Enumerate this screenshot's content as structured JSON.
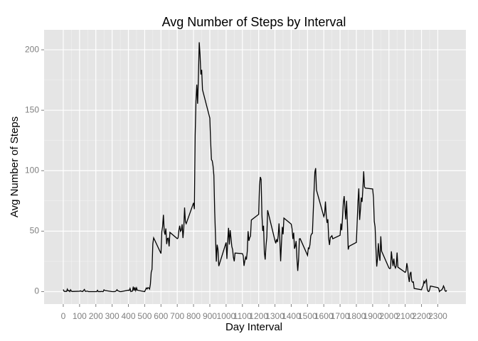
{
  "chart_data": {
    "type": "line",
    "title": "Avg Number of Steps by Interval",
    "x_label": "Day Interval",
    "y_label": "Avg Number of Steps",
    "color": "#000000",
    "grid": true,
    "x": [
      0,
      5,
      10,
      15,
      20,
      25,
      30,
      35,
      40,
      45,
      50,
      55,
      100,
      105,
      110,
      115,
      120,
      125,
      130,
      135,
      140,
      145,
      150,
      155,
      200,
      205,
      210,
      215,
      220,
      225,
      230,
      235,
      240,
      245,
      250,
      255,
      300,
      305,
      310,
      315,
      320,
      325,
      330,
      335,
      340,
      345,
      350,
      355,
      400,
      405,
      410,
      415,
      420,
      425,
      430,
      435,
      440,
      445,
      450,
      455,
      500,
      505,
      510,
      515,
      520,
      525,
      530,
      535,
      540,
      545,
      550,
      555,
      600,
      605,
      610,
      615,
      620,
      625,
      630,
      635,
      640,
      645,
      650,
      655,
      700,
      705,
      710,
      715,
      720,
      725,
      730,
      735,
      740,
      745,
      750,
      755,
      800,
      805,
      810,
      815,
      820,
      825,
      830,
      835,
      840,
      845,
      850,
      855,
      900,
      905,
      910,
      915,
      920,
      925,
      930,
      935,
      940,
      945,
      950,
      955,
      1000,
      1005,
      1010,
      1015,
      1020,
      1025,
      1030,
      1035,
      1040,
      1045,
      1050,
      1055,
      1100,
      1105,
      1110,
      1115,
      1120,
      1125,
      1130,
      1135,
      1140,
      1145,
      1150,
      1155,
      1200,
      1205,
      1210,
      1215,
      1220,
      1225,
      1230,
      1235,
      1240,
      1245,
      1250,
      1255,
      1300,
      1305,
      1310,
      1315,
      1320,
      1325,
      1330,
      1335,
      1340,
      1345,
      1350,
      1355,
      1400,
      1405,
      1410,
      1415,
      1420,
      1425,
      1430,
      1435,
      1440,
      1445,
      1450,
      1455,
      1500,
      1505,
      1510,
      1515,
      1520,
      1525,
      1530,
      1535,
      1540,
      1545,
      1550,
      1555,
      1600,
      1605,
      1610,
      1615,
      1620,
      1625,
      1630,
      1635,
      1640,
      1645,
      1650,
      1655,
      1700,
      1705,
      1710,
      1715,
      1720,
      1725,
      1730,
      1735,
      1740,
      1745,
      1750,
      1755,
      1800,
      1805,
      1810,
      1815,
      1820,
      1825,
      1830,
      1835,
      1840,
      1845,
      1850,
      1855,
      1900,
      1905,
      1910,
      1915,
      1920,
      1925,
      1930,
      1935,
      1940,
      1945,
      1950,
      1955,
      2000,
      2005,
      2010,
      2015,
      2020,
      2025,
      2030,
      2035,
      2040,
      2045,
      2050,
      2055,
      2100,
      2105,
      2110,
      2115,
      2120,
      2125,
      2130,
      2135,
      2140,
      2145,
      2150,
      2155,
      2200,
      2205,
      2210,
      2215,
      2220,
      2225,
      2230,
      2235,
      2240,
      2245,
      2250,
      2255,
      2300,
      2305,
      2310,
      2315,
      2320,
      2325,
      2330,
      2335,
      2340,
      2345,
      2350,
      2355
    ],
    "values": [
      1.7,
      0.3,
      0.1,
      0.2,
      0.1,
      2.1,
      0.5,
      0.9,
      0,
      1.5,
      0.3,
      0.1,
      0.3,
      0.7,
      0.2,
      0.3,
      0,
      1.1,
      1.8,
      0.2,
      0.2,
      0.4,
      0.3,
      0,
      0,
      0,
      1.1,
      0,
      0,
      0.1,
      0,
      0.2,
      0,
      0,
      1.5,
      0.9,
      0,
      0,
      0,
      0,
      0.2,
      0.6,
      1.6,
      0.6,
      0.5,
      0.1,
      0,
      0,
      1.2,
      0.9,
      2.6,
      0,
      0.3,
      0.4,
      4.1,
      0.7,
      3.5,
      0.8,
      3.1,
      1.1,
      0,
      1.6,
      3.0,
      2.2,
      3.3,
      3.0,
      2.1,
      6.1,
      16.0,
      18.3,
      39.5,
      44.5,
      31.5,
      49.3,
      53.8,
      63.5,
      50.0,
      47.1,
      52.2,
      39.3,
      44.0,
      44.2,
      37.4,
      49.0,
      43.8,
      44.4,
      50.5,
      54.5,
      49.9,
      50.9,
      55.7,
      44.3,
      52.3,
      69.5,
      57.8,
      56.2,
      73.4,
      68.2,
      129.4,
      157.5,
      171.2,
      155.4,
      177.3,
      206.2,
      195.9,
      179.6,
      183.4,
      167.0,
      143.5,
      124.0,
      109.1,
      108.1,
      103.7,
      95.9,
      66.2,
      45.2,
      24.8,
      38.8,
      35.0,
      21.1,
      40.6,
      27.0,
      42.4,
      52.7,
      38.9,
      50.8,
      44.3,
      37.4,
      34.7,
      28.3,
      25.1,
      31.9,
      31.4,
      29.7,
      21.3,
      25.5,
      28.4,
      26.5,
      33.4,
      50.0,
      42.0,
      44.6,
      46.0,
      59.2,
      63.9,
      87.7,
      94.8,
      92.8,
      63.4,
      50.2,
      54.5,
      32.4,
      26.5,
      37.7,
      45.1,
      67.3,
      42.3,
      39.9,
      43.3,
      41.0,
      46.2,
      56.4,
      42.8,
      25.1,
      40.0,
      53.5,
      47.4,
      60.8,
      55.8,
      52.0,
      43.6,
      48.7,
      35.5,
      37.5,
      41.8,
      27.5,
      17.1,
      26.1,
      43.6,
      43.8,
      30.0,
      36.1,
      35.5,
      38.8,
      46.0,
      47.8,
      48.1,
      65.3,
      82.9,
      98.7,
      102.1,
      84.0,
      62.1,
      64.1,
      74.5,
      63.2,
      56.9,
      59.8,
      43.9,
      38.6,
      44.7,
      45.5,
      46.2,
      43.7,
      46.6,
      56.3,
      50.7,
      61.2,
      73.4,
      79.0,
      68.9,
      59.7,
      75.1,
      56.5,
      34.8,
      37.5,
      40.7,
      58.0,
      74.7,
      85.3,
      59.3,
      67.8,
      77.7,
      74.2,
      85.3,
      99.5,
      86.6,
      85.6,
      84.9,
      77.8,
      58.0,
      53.4,
      36.3,
      20.7,
      27.4,
      40.0,
      30.2,
      25.5,
      45.7,
      33.5,
      19.6,
      19.0,
      19.3,
      33.3,
      26.8,
      21.2,
      27.3,
      21.3,
      19.5,
      21.3,
      32.3,
      20.2,
      15.9,
      17.2,
      23.5,
      19.2,
      12.5,
      8.0,
      14.7,
      16.3,
      8.7,
      7.8,
      8.1,
      2.6,
      1.5,
      3.7,
      4.8,
      8.5,
      7.1,
      8.7,
      9.8,
      2.2,
      0.3,
      0.1,
      1.6,
      4.6,
      3.3,
      2.8,
      0,
      0.8,
      1.0,
      1.6,
      2.6,
      4.7,
      3.3,
      0.6,
      0.2,
      1.1
    ],
    "xlim": [
      -117.75,
      2472.75
    ],
    "xticks": [
      0,
      100,
      200,
      300,
      400,
      500,
      600,
      700,
      800,
      900,
      1000,
      1100,
      1200,
      1300,
      1400,
      1500,
      1600,
      1700,
      1800,
      1900,
      2000,
      2100,
      2200,
      2300
    ],
    "ylim": [
      -10.3,
      216.5
    ],
    "yticks": [
      0,
      50,
      100,
      150,
      200
    ]
  }
}
